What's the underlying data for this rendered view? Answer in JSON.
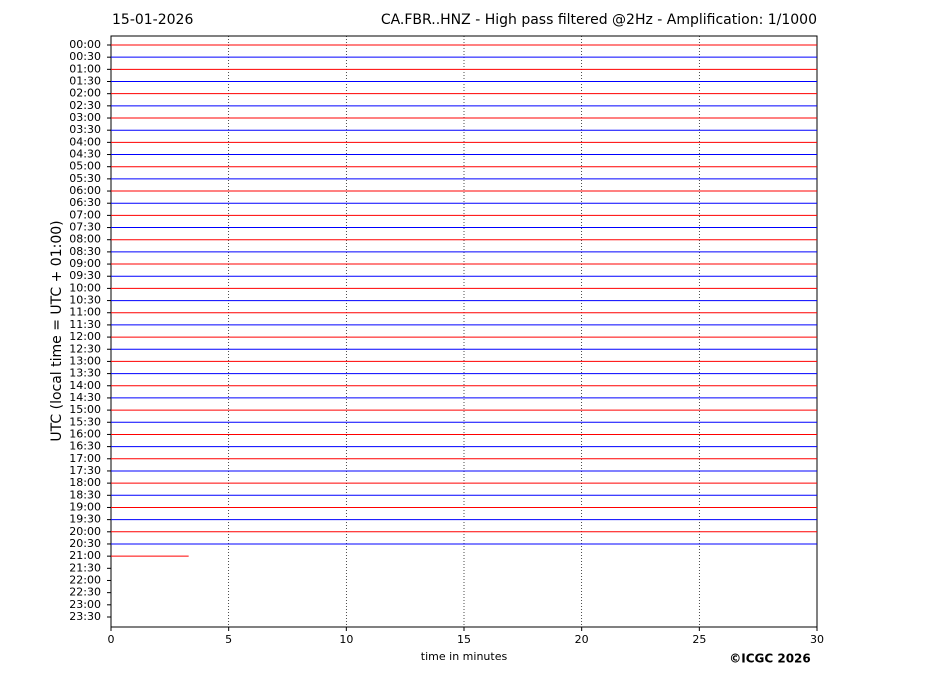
{
  "chart_data": {
    "type": "helicorder",
    "date": "15-01-2026",
    "title": "CA.FBR..HNZ - High pass filtered @2Hz - Amplification: 1/1000",
    "ylabel": "UTC (local time = UTC + 01:00)",
    "xlabel": "time in minutes",
    "credit": "©ICGC 2026",
    "xlim": [
      0,
      30
    ],
    "xticks": [
      0,
      5,
      10,
      15,
      20,
      25,
      30
    ],
    "grid": true,
    "colors": [
      "#ff0000",
      "#0000ff"
    ],
    "categories": [
      "00:00",
      "00:30",
      "01:00",
      "01:30",
      "02:00",
      "02:30",
      "03:00",
      "03:30",
      "04:00",
      "04:30",
      "05:00",
      "05:30",
      "06:00",
      "06:30",
      "07:00",
      "07:30",
      "08:00",
      "08:30",
      "09:00",
      "09:30",
      "10:00",
      "10:30",
      "11:00",
      "11:30",
      "12:00",
      "12:30",
      "13:00",
      "13:30",
      "14:00",
      "14:30",
      "15:00",
      "15:30",
      "16:00",
      "16:30",
      "17:00",
      "17:30",
      "18:00",
      "18:30",
      "19:00",
      "19:30",
      "20:00",
      "20:30",
      "21:00",
      "21:30",
      "22:00",
      "22:30",
      "23:00",
      "23:30"
    ],
    "trace_end": [
      30,
      30,
      30,
      30,
      30,
      30,
      30,
      30,
      30,
      30,
      30,
      30,
      30,
      30,
      30,
      30,
      30,
      30,
      30,
      30,
      30,
      30,
      30,
      30,
      30,
      30,
      30,
      30,
      30,
      30,
      30,
      30,
      30,
      30,
      30,
      30,
      30,
      30,
      30,
      30,
      30,
      30,
      3.3,
      null,
      null,
      null,
      null,
      null
    ]
  }
}
